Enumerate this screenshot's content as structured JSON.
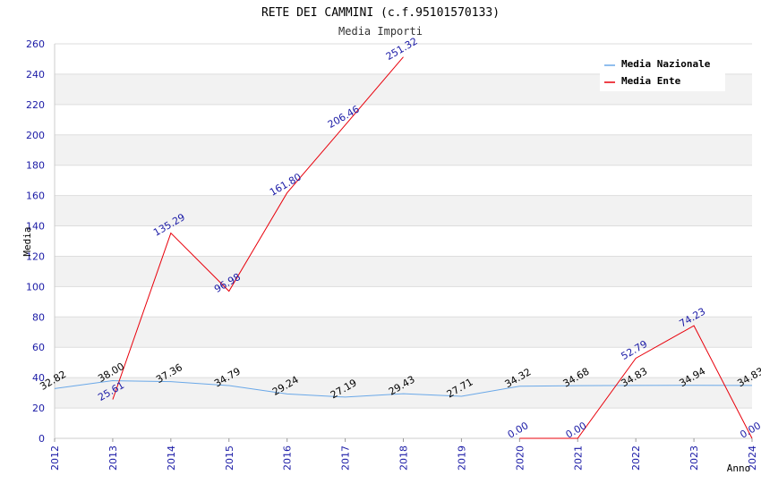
{
  "chart_data": {
    "type": "line",
    "title": "RETE DEI CAMMINI (c.f.95101570133)",
    "subtitle": "Media Importi",
    "xlabel": "Anno",
    "ylabel": "Media",
    "categories": [
      "2012",
      "2013",
      "2014",
      "2015",
      "2016",
      "2017",
      "2018",
      "2019",
      "2020",
      "2021",
      "2022",
      "2023",
      "2024"
    ],
    "ylim": [
      0,
      260
    ],
    "yticks": [
      0,
      20,
      40,
      60,
      80,
      100,
      120,
      140,
      160,
      180,
      200,
      220,
      240,
      260
    ],
    "grid": true,
    "legend_position": "top-right",
    "series": [
      {
        "name": "Media Nazionale",
        "color": "#6aa8e8",
        "label_color": "#000000",
        "values": [
          32.82,
          38.0,
          37.36,
          34.79,
          29.24,
          27.19,
          29.43,
          27.71,
          34.32,
          34.68,
          34.83,
          34.94,
          34.83
        ],
        "labels": [
          "32.82",
          "38.00",
          "37.36",
          "34.79",
          "29.24",
          "27.19",
          "29.43",
          "27.71",
          "34.32",
          "34.68",
          "34.83",
          "34.94",
          "34.83"
        ]
      },
      {
        "name": "Media Ente",
        "color": "#e8000b",
        "label_color": "#1a1aa6",
        "values": [
          null,
          25.61,
          135.29,
          96.98,
          161.8,
          206.46,
          251.32,
          null,
          0.0,
          0.0,
          52.79,
          74.23,
          0.0
        ],
        "labels": [
          null,
          "25.61",
          "135.29",
          "96.98",
          "161.80",
          "206.46",
          "251.32",
          null,
          "0.00",
          "0.00",
          "52.79",
          "74.23",
          "0.00"
        ]
      }
    ]
  }
}
